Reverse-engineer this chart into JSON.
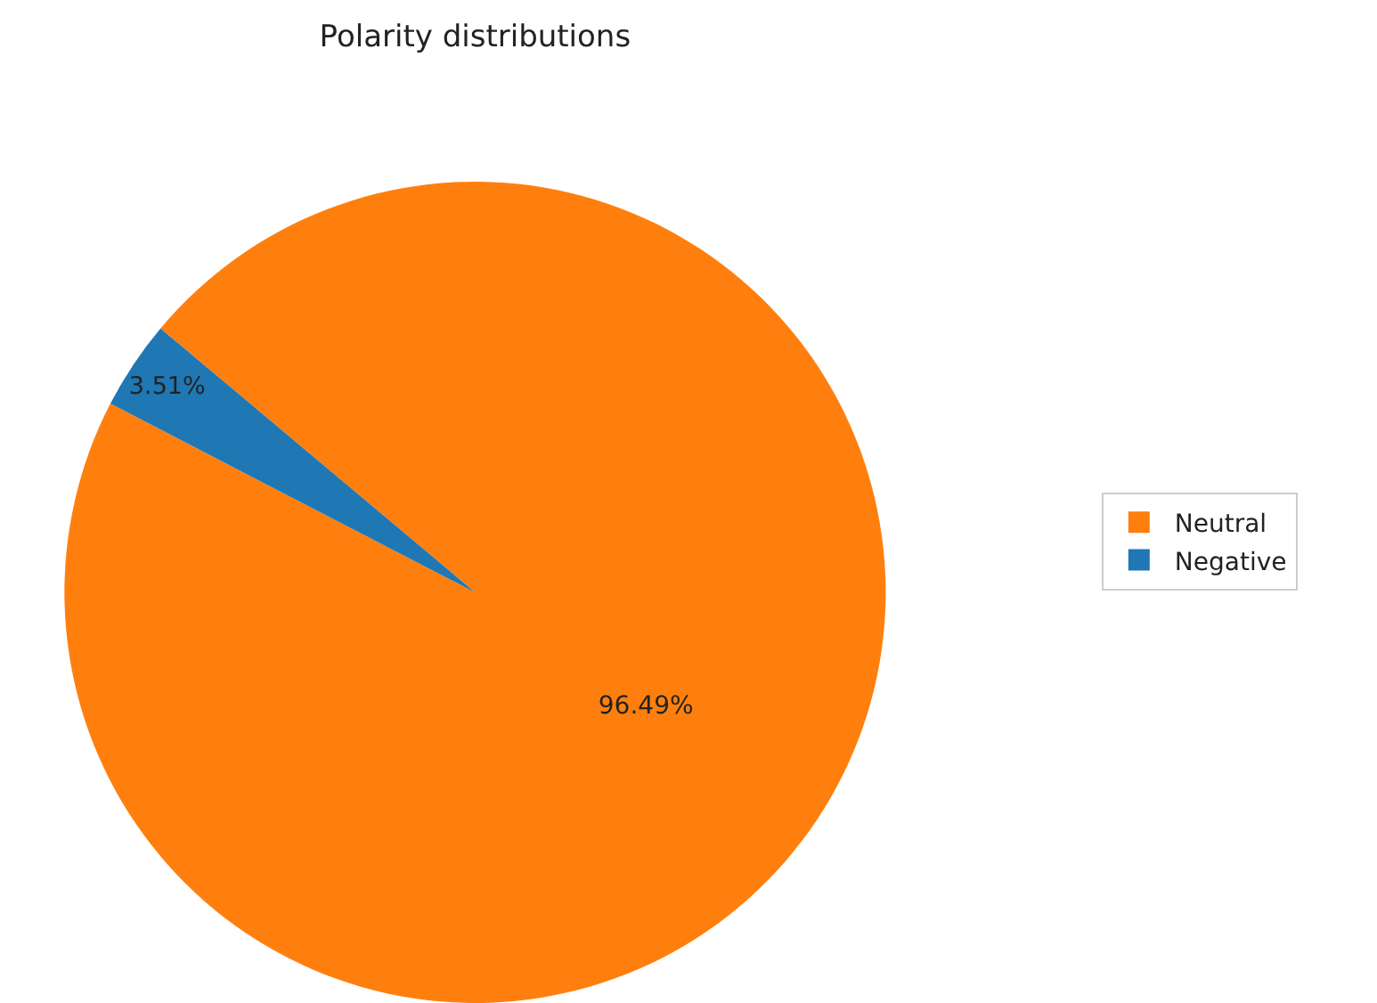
{
  "chart_data": {
    "type": "pie",
    "title": "Polarity distributions",
    "categories": [
      "Neutral",
      "Negative"
    ],
    "values": [
      96.49,
      3.51
    ],
    "colors": [
      "#ff7f0e",
      "#1f77b4"
    ],
    "value_labels": [
      "96.49%",
      "3.51%"
    ],
    "legend": "right"
  }
}
